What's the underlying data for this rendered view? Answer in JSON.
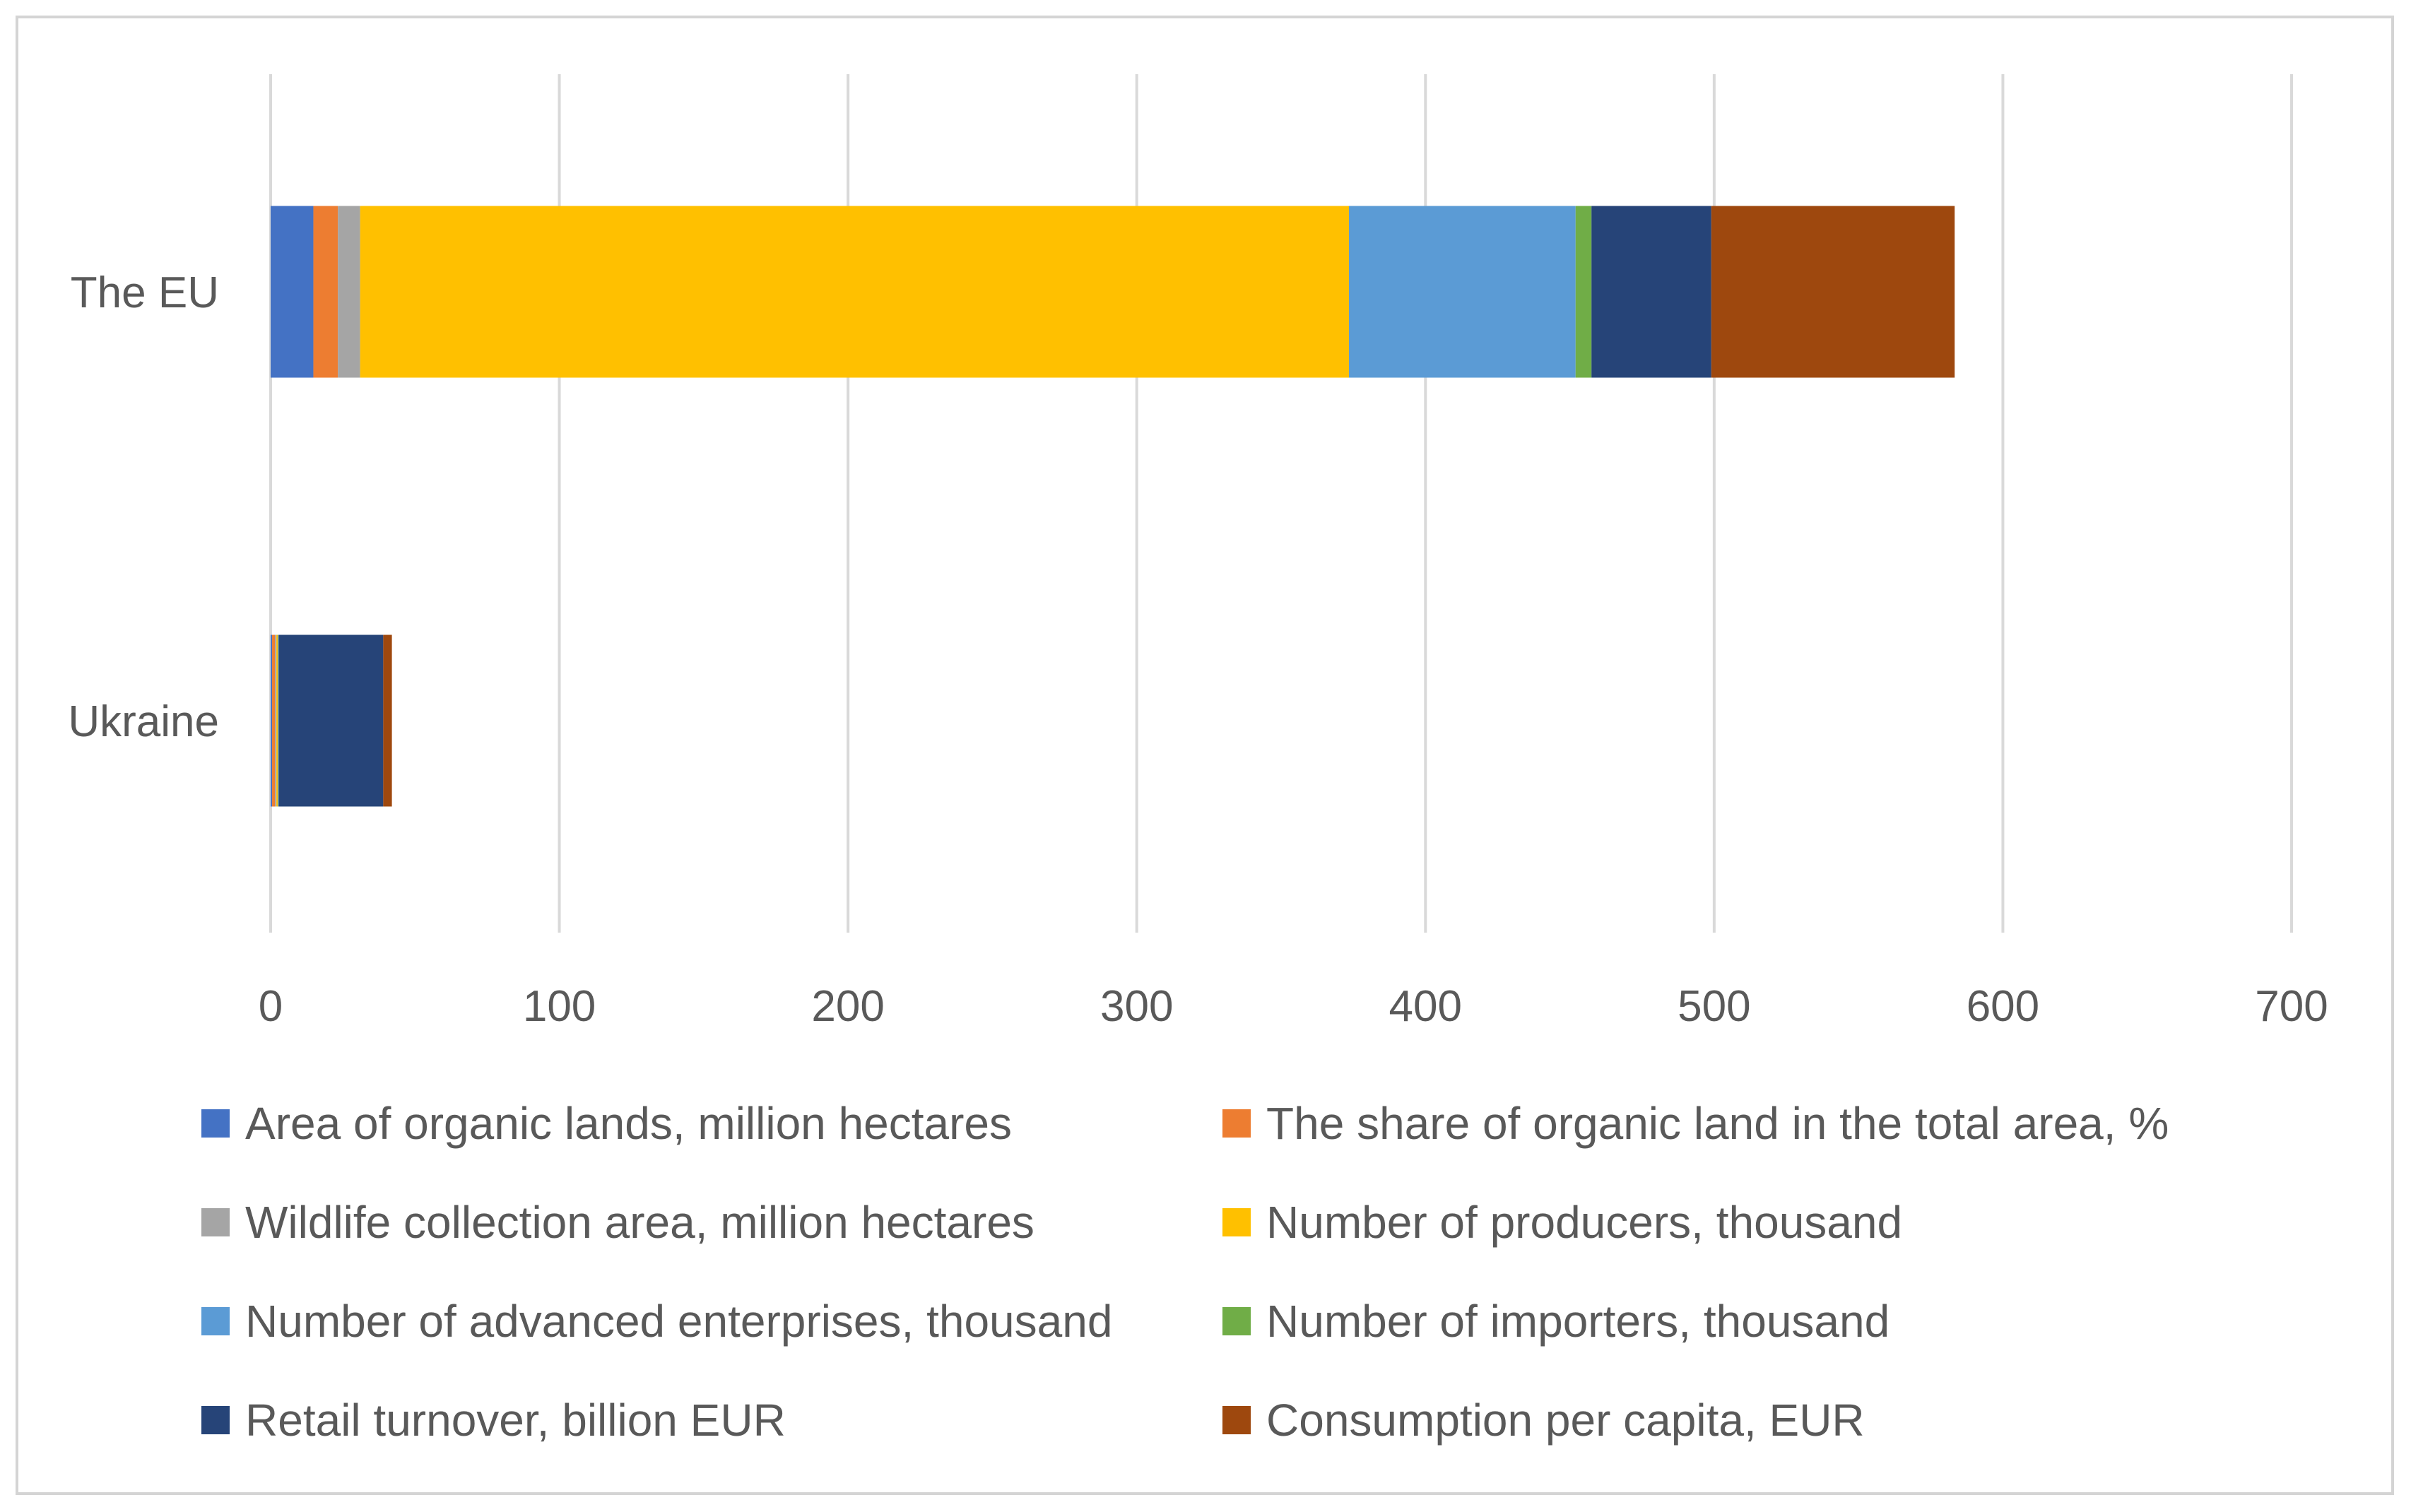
{
  "chart_data": {
    "type": "bar",
    "orientation": "horizontal",
    "stacked": true,
    "title": "",
    "xlabel": "",
    "ylabel": "",
    "xlim": [
      0,
      700
    ],
    "xticks": [
      0,
      100,
      200,
      300,
      400,
      500,
      600,
      700
    ],
    "grid": true,
    "legend_position": "bottom",
    "categories": [
      "The EU",
      "Ukraine"
    ],
    "series": [
      {
        "name": "Area of organic lands, million hectares",
        "color": "#4472C4",
        "values": [
          14.8,
          0.5
        ]
      },
      {
        "name": "The share of organic land in the total area, %",
        "color": "#ED7D31",
        "values": [
          8.5,
          1.0
        ]
      },
      {
        "name": "Wildlife collection area, million hectares",
        "color": "#A5A5A5",
        "values": [
          7.7,
          0.5
        ]
      },
      {
        "name": "Number of producers, thousand",
        "color": "#FFC000",
        "values": [
          342.5,
          0.5
        ]
      },
      {
        "name": "Number of advanced enterprises, thousand",
        "color": "#5B9BD5",
        "values": [
          78.5,
          0.2
        ]
      },
      {
        "name": "Number of importers, thousand",
        "color": "#70AD47",
        "values": [
          5.5,
          0.1
        ]
      },
      {
        "name": "Retail turnover, billion EUR",
        "color": "#264478",
        "values": [
          41.5,
          36.2
        ]
      },
      {
        "name": "Consumption per capita, EUR",
        "color": "#9E480E",
        "values": [
          84.3,
          3.0
        ]
      }
    ]
  }
}
